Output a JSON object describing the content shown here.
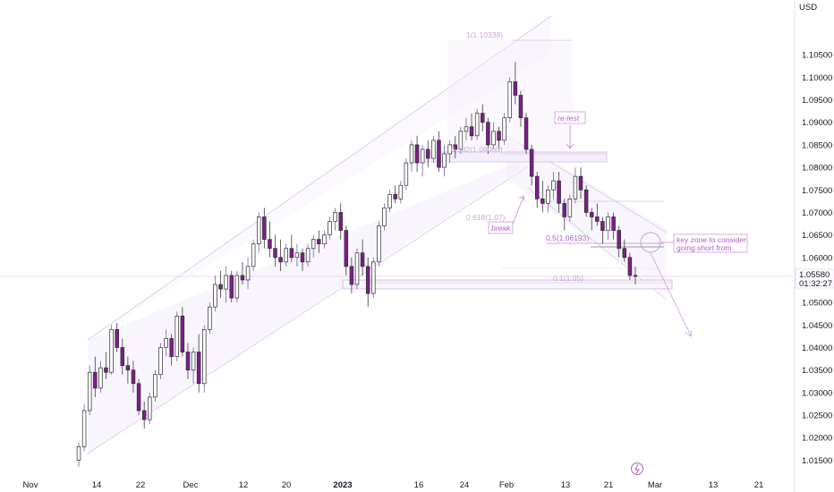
{
  "chart_data": {
    "type": "candlestick",
    "currency": "USD",
    "price_ticks": [
      "1.10500",
      "1.10000",
      "1.09500",
      "1.09000",
      "1.08500",
      "1.08000",
      "1.07500",
      "1.07000",
      "1.06500",
      "1.06000",
      "1.05500",
      "1.05000",
      "1.04500",
      "1.04000",
      "1.03500",
      "1.03000",
      "1.02500",
      "1.02000",
      "1.01500"
    ],
    "ylim": [
      1.0125,
      1.11
    ],
    "date_ticks": [
      "Nov",
      "14",
      "22",
      "Dec",
      "12",
      "20",
      "2023",
      "16",
      "24",
      "Feb",
      "13",
      "21",
      "Mar",
      "13",
      "21"
    ],
    "current_price": "1.05580",
    "countdown": "01:32:27",
    "annotations": {
      "retest": "re-test",
      "break": "break",
      "key_zone_line1": "key zone to consider",
      "key_zone_line2": "going short from",
      "fib_1": "1(1.10338)",
      "fib_0382": "0.382(1.08060)",
      "fib_05": "0.5(1.06193)",
      "fib_0618": "0.618(1.07)",
      "fib_1b": "0.1(1.05)"
    },
    "candles": [
      [
        1.015,
        1.019,
        1.0135,
        1.018
      ],
      [
        1.018,
        1.0275,
        1.017,
        1.026
      ],
      [
        1.026,
        1.036,
        1.025,
        1.0345
      ],
      [
        1.0345,
        1.038,
        1.029,
        1.031
      ],
      [
        1.031,
        1.037,
        1.03,
        1.0355
      ],
      [
        1.0355,
        1.039,
        1.033,
        1.0345
      ],
      [
        1.0345,
        1.045,
        1.034,
        1.044
      ],
      [
        1.044,
        1.0455,
        1.039,
        1.04
      ],
      [
        1.04,
        1.042,
        1.034,
        1.036
      ],
      [
        1.036,
        1.038,
        1.032,
        1.035
      ],
      [
        1.035,
        1.037,
        1.03,
        1.032
      ],
      [
        1.032,
        1.033,
        1.025,
        1.026
      ],
      [
        1.026,
        1.028,
        1.022,
        1.024
      ],
      [
        1.024,
        1.03,
        1.023,
        1.029
      ],
      [
        1.029,
        1.035,
        1.028,
        1.034
      ],
      [
        1.034,
        1.041,
        1.033,
        1.04
      ],
      [
        1.04,
        1.044,
        1.038,
        1.042
      ],
      [
        1.042,
        1.043,
        1.036,
        1.038
      ],
      [
        1.038,
        1.048,
        1.037,
        1.047
      ],
      [
        1.047,
        1.049,
        1.038,
        1.039
      ],
      [
        1.039,
        1.041,
        1.033,
        1.035
      ],
      [
        1.035,
        1.04,
        1.032,
        1.039
      ],
      [
        1.039,
        1.043,
        1.03,
        1.032
      ],
      [
        1.032,
        1.045,
        1.03,
        1.044
      ],
      [
        1.044,
        1.05,
        1.043,
        1.049
      ],
      [
        1.049,
        1.056,
        1.048,
        1.054
      ],
      [
        1.054,
        1.057,
        1.051,
        1.053
      ],
      [
        1.053,
        1.058,
        1.05,
        1.056
      ],
      [
        1.056,
        1.057,
        1.05,
        1.051
      ],
      [
        1.051,
        1.057,
        1.05,
        1.056
      ],
      [
        1.056,
        1.059,
        1.054,
        1.055
      ],
      [
        1.055,
        1.06,
        1.053,
        1.058
      ],
      [
        1.058,
        1.064,
        1.057,
        1.063
      ],
      [
        1.063,
        1.07,
        1.061,
        1.069
      ],
      [
        1.069,
        1.071,
        1.062,
        1.064
      ],
      [
        1.064,
        1.068,
        1.06,
        1.062
      ],
      [
        1.062,
        1.065,
        1.058,
        1.06
      ],
      [
        1.06,
        1.064,
        1.057,
        1.059
      ],
      [
        1.059,
        1.063,
        1.058,
        1.062
      ],
      [
        1.062,
        1.065,
        1.059,
        1.06
      ],
      [
        1.06,
        1.063,
        1.058,
        1.061
      ],
      [
        1.061,
        1.062,
        1.057,
        1.059
      ],
      [
        1.059,
        1.063,
        1.058,
        1.062
      ],
      [
        1.062,
        1.065,
        1.06,
        1.064
      ],
      [
        1.064,
        1.066,
        1.061,
        1.063
      ],
      [
        1.063,
        1.066,
        1.062,
        1.065
      ],
      [
        1.065,
        1.069,
        1.064,
        1.068
      ],
      [
        1.068,
        1.071,
        1.066,
        1.07
      ],
      [
        1.07,
        1.072,
        1.064,
        1.066
      ],
      [
        1.066,
        1.067,
        1.056,
        1.058
      ],
      [
        1.058,
        1.06,
        1.052,
        1.054
      ],
      [
        1.054,
        1.062,
        1.053,
        1.061
      ],
      [
        1.061,
        1.064,
        1.056,
        1.058
      ],
      [
        1.058,
        1.06,
        1.049,
        1.052
      ],
      [
        1.052,
        1.06,
        1.051,
        1.059
      ],
      [
        1.059,
        1.068,
        1.058,
        1.067
      ],
      [
        1.067,
        1.072,
        1.066,
        1.071
      ],
      [
        1.071,
        1.075,
        1.07,
        1.074
      ],
      [
        1.074,
        1.076,
        1.072,
        1.073
      ],
      [
        1.073,
        1.077,
        1.072,
        1.076
      ],
      [
        1.076,
        1.082,
        1.075,
        1.081
      ],
      [
        1.081,
        1.086,
        1.079,
        1.085
      ],
      [
        1.085,
        1.087,
        1.079,
        1.081
      ],
      [
        1.081,
        1.085,
        1.078,
        1.084
      ],
      [
        1.084,
        1.086,
        1.08,
        1.082
      ],
      [
        1.082,
        1.087,
        1.081,
        1.086
      ],
      [
        1.086,
        1.088,
        1.079,
        1.08
      ],
      [
        1.08,
        1.085,
        1.078,
        1.083
      ],
      [
        1.083,
        1.086,
        1.081,
        1.085
      ],
      [
        1.085,
        1.087,
        1.082,
        1.084
      ],
      [
        1.084,
        1.089,
        1.083,
        1.088
      ],
      [
        1.088,
        1.091,
        1.086,
        1.089
      ],
      [
        1.089,
        1.092,
        1.086,
        1.087
      ],
      [
        1.087,
        1.093,
        1.086,
        1.092
      ],
      [
        1.092,
        1.094,
        1.088,
        1.09
      ],
      [
        1.09,
        1.091,
        1.083,
        1.085
      ],
      [
        1.085,
        1.09,
        1.084,
        1.088
      ],
      [
        1.088,
        1.089,
        1.084,
        1.086
      ],
      [
        1.086,
        1.092,
        1.085,
        1.091
      ],
      [
        1.091,
        1.1,
        1.09,
        1.099
      ],
      [
        1.099,
        1.1034,
        1.094,
        1.096
      ],
      [
        1.096,
        1.097,
        1.089,
        1.091
      ],
      [
        1.091,
        1.092,
        1.083,
        1.084
      ],
      [
        1.084,
        1.085,
        1.076,
        1.078
      ],
      [
        1.078,
        1.079,
        1.071,
        1.073
      ],
      [
        1.073,
        1.077,
        1.07,
        1.072
      ],
      [
        1.072,
        1.076,
        1.07,
        1.075
      ],
      [
        1.075,
        1.079,
        1.073,
        1.077
      ],
      [
        1.077,
        1.079,
        1.07,
        1.072
      ],
      [
        1.072,
        1.073,
        1.066,
        1.069
      ],
      [
        1.069,
        1.074,
        1.068,
        1.073
      ],
      [
        1.073,
        1.08,
        1.072,
        1.078
      ],
      [
        1.078,
        1.08,
        1.073,
        1.075
      ],
      [
        1.075,
        1.076,
        1.069,
        1.07
      ],
      [
        1.07,
        1.071,
        1.066,
        1.069
      ],
      [
        1.069,
        1.072,
        1.067,
        1.068
      ],
      [
        1.068,
        1.069,
        1.063,
        1.066
      ],
      [
        1.066,
        1.07,
        1.064,
        1.069
      ],
      [
        1.069,
        1.07,
        1.064,
        1.066
      ],
      [
        1.066,
        1.067,
        1.06,
        1.062
      ],
      [
        1.062,
        1.064,
        1.059,
        1.06
      ],
      [
        1.06,
        1.061,
        1.055,
        1.056
      ],
      [
        1.056,
        1.058,
        1.054,
        1.0558
      ]
    ]
  }
}
